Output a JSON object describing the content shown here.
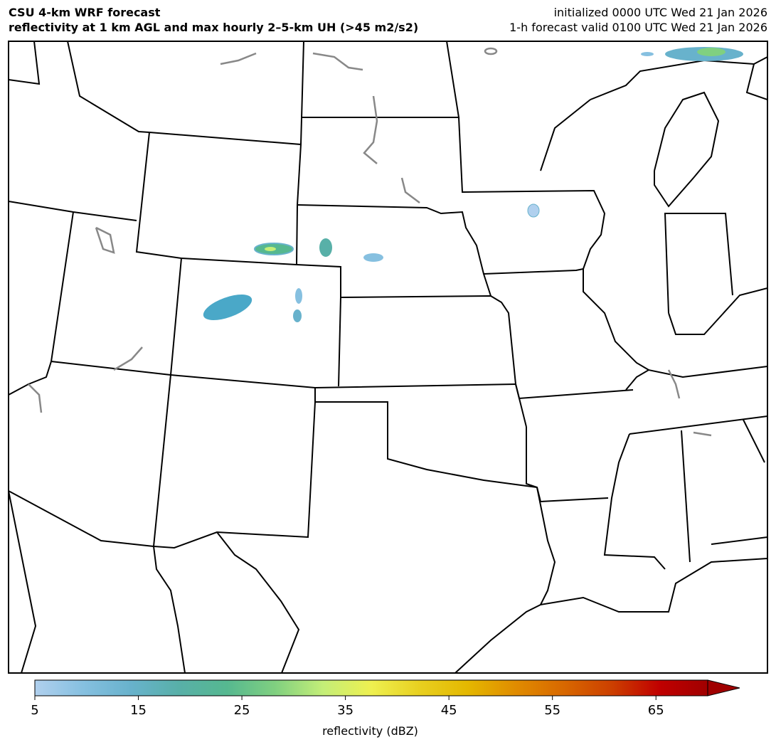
{
  "header": {
    "title_line1": "CSU 4-km WRF forecast",
    "title_line2": "reflectivity at 1 km AGL and max hourly 2–5-km UH (>45 m2/s2)",
    "init_text": "initialized 0000 UTC Wed 21 Jan 2026",
    "valid_text": "1-h forecast valid 0100 UTC Wed 21 Jan 2026"
  },
  "colorbar": {
    "label": "reflectivity (dBZ)",
    "ticks": [
      "5",
      "15",
      "25",
      "35",
      "45",
      "55",
      "65"
    ],
    "range": [
      5,
      70
    ],
    "extend": "max",
    "colors": [
      "#b0d0ee",
      "#86c0e0",
      "#68b2cc",
      "#58b0a8",
      "#56b890",
      "#80d080",
      "#c4ee78",
      "#eef050",
      "#e8d020",
      "#e4b800",
      "#e08c00",
      "#d86800",
      "#cc4000",
      "#c00000",
      "#a00000"
    ]
  },
  "map": {
    "region": "central United States",
    "state_line_color": "#000000",
    "lake_line_color": "#888888"
  }
}
